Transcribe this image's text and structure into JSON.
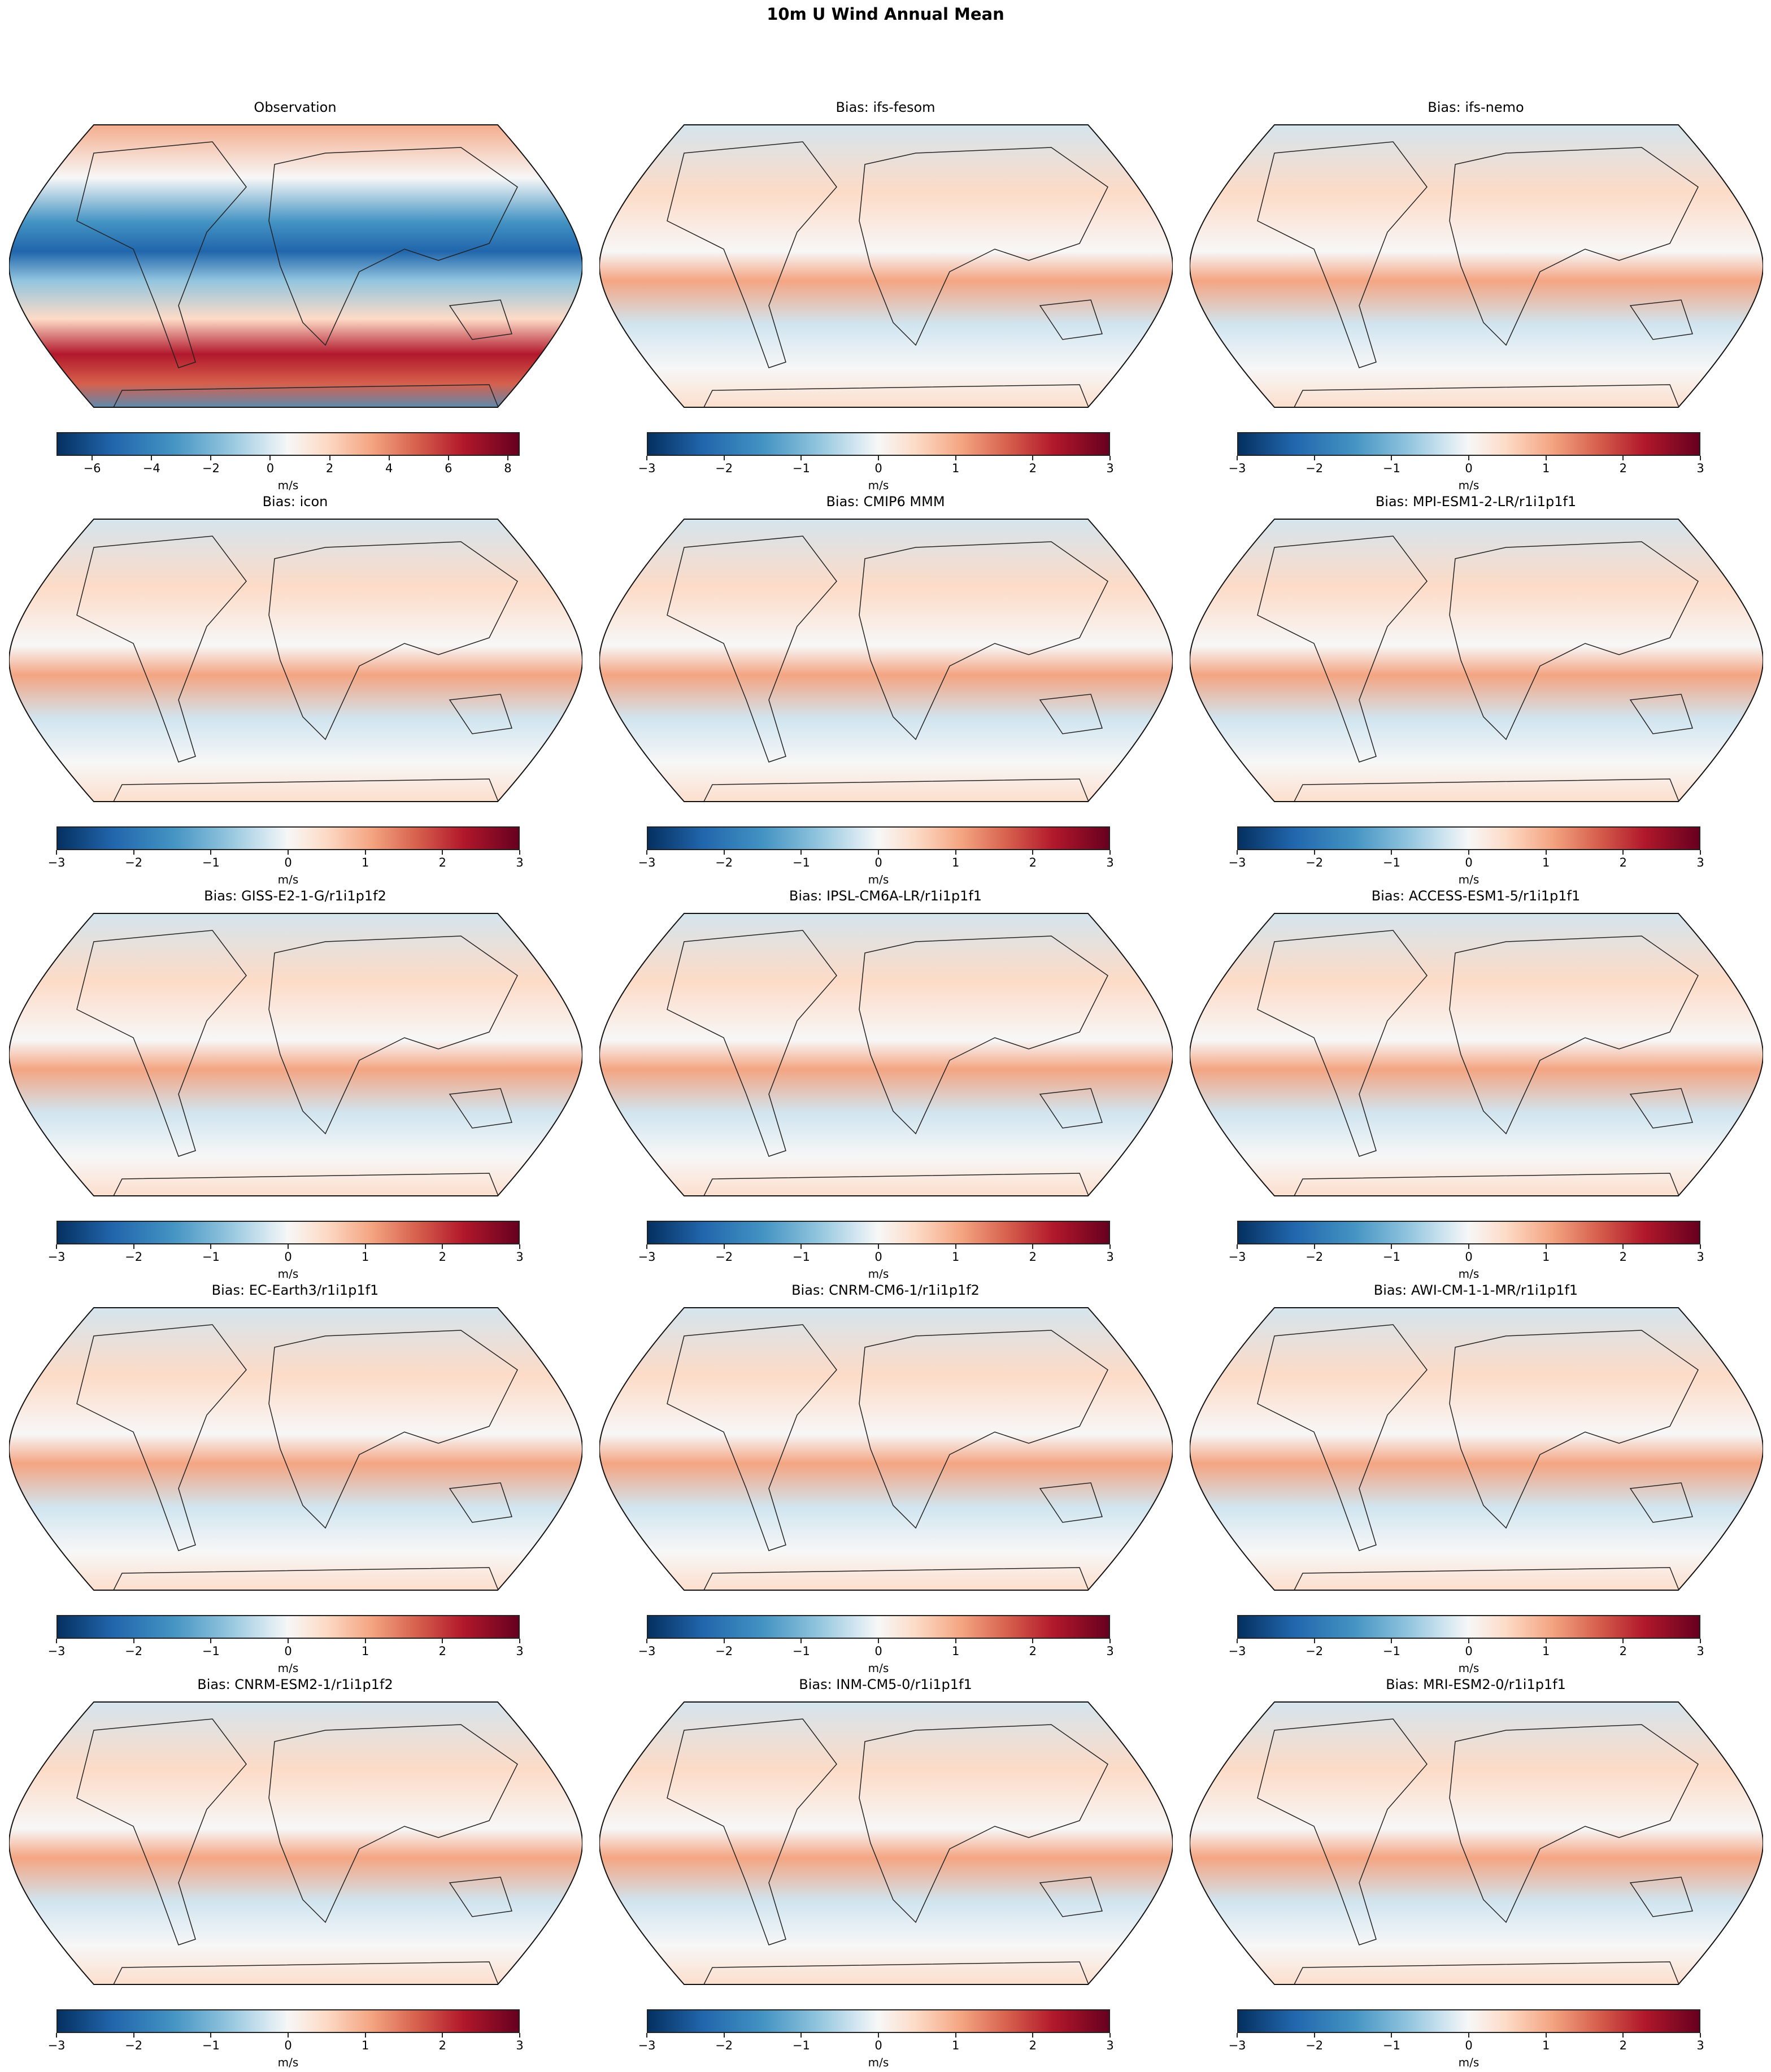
{
  "figure": {
    "title": "10m U Wind Annual Mean",
    "colormap": "RdBu_r",
    "colormap_stops": [
      "#053061",
      "#2166ac",
      "#4393c3",
      "#92c5de",
      "#d1e5f0",
      "#f7f7f7",
      "#fddbc7",
      "#f4a582",
      "#d6604d",
      "#b2182b",
      "#67001f"
    ],
    "projection": "Robinson",
    "grid": {
      "rows": 5,
      "cols": 3
    }
  },
  "panels": [
    {
      "title": "Observation",
      "cbar_label": "m/s",
      "ticks": [
        "−6",
        "−4",
        "−2",
        "0",
        "2",
        "4",
        "6",
        "8"
      ],
      "vmin": -7.2,
      "vmax": 8.4
    },
    {
      "title": "Bias: ifs-fesom",
      "cbar_label": "m/s",
      "ticks": [
        "−3",
        "−2",
        "−1",
        "0",
        "1",
        "2",
        "3"
      ],
      "vmin": -3,
      "vmax": 3
    },
    {
      "title": "Bias: ifs-nemo",
      "cbar_label": "m/s",
      "ticks": [
        "−3",
        "−2",
        "−1",
        "0",
        "1",
        "2",
        "3"
      ],
      "vmin": -3,
      "vmax": 3
    },
    {
      "title": "Bias: icon",
      "cbar_label": "m/s",
      "ticks": [
        "−3",
        "−2",
        "−1",
        "0",
        "1",
        "2",
        "3"
      ],
      "vmin": -3,
      "vmax": 3
    },
    {
      "title": "Bias: CMIP6 MMM",
      "cbar_label": "m/s",
      "ticks": [
        "−3",
        "−2",
        "−1",
        "0",
        "1",
        "2",
        "3"
      ],
      "vmin": -3,
      "vmax": 3
    },
    {
      "title": "Bias: MPI-ESM1-2-LR/r1i1p1f1",
      "cbar_label": "m/s",
      "ticks": [
        "−3",
        "−2",
        "−1",
        "0",
        "1",
        "2",
        "3"
      ],
      "vmin": -3,
      "vmax": 3
    },
    {
      "title": "Bias: GISS-E2-1-G/r1i1p1f2",
      "cbar_label": "m/s",
      "ticks": [
        "−3",
        "−2",
        "−1",
        "0",
        "1",
        "2",
        "3"
      ],
      "vmin": -3,
      "vmax": 3
    },
    {
      "title": "Bias: IPSL-CM6A-LR/r1i1p1f1",
      "cbar_label": "m/s",
      "ticks": [
        "−3",
        "−2",
        "−1",
        "0",
        "1",
        "2",
        "3"
      ],
      "vmin": -3,
      "vmax": 3
    },
    {
      "title": "Bias: ACCESS-ESM1-5/r1i1p1f1",
      "cbar_label": "m/s",
      "ticks": [
        "−3",
        "−2",
        "−1",
        "0",
        "1",
        "2",
        "3"
      ],
      "vmin": -3,
      "vmax": 3
    },
    {
      "title": "Bias: EC-Earth3/r1i1p1f1",
      "cbar_label": "m/s",
      "ticks": [
        "−3",
        "−2",
        "−1",
        "0",
        "1",
        "2",
        "3"
      ],
      "vmin": -3,
      "vmax": 3
    },
    {
      "title": "Bias: CNRM-CM6-1/r1i1p1f2",
      "cbar_label": "m/s",
      "ticks": [
        "−3",
        "−2",
        "−1",
        "0",
        "1",
        "2",
        "3"
      ],
      "vmin": -3,
      "vmax": 3
    },
    {
      "title": "Bias: AWI-CM-1-1-MR/r1i1p1f1",
      "cbar_label": "m/s",
      "ticks": [
        "−3",
        "−2",
        "−1",
        "0",
        "1",
        "2",
        "3"
      ],
      "vmin": -3,
      "vmax": 3
    },
    {
      "title": "Bias: CNRM-ESM2-1/r1i1p1f2",
      "cbar_label": "m/s",
      "ticks": [
        "−3",
        "−2",
        "−1",
        "0",
        "1",
        "2",
        "3"
      ],
      "vmin": -3,
      "vmax": 3
    },
    {
      "title": "Bias: INM-CM5-0/r1i1p1f1",
      "cbar_label": "m/s",
      "ticks": [
        "−3",
        "−2",
        "−1",
        "0",
        "1",
        "2",
        "3"
      ],
      "vmin": -3,
      "vmax": 3
    },
    {
      "title": "Bias: MRI-ESM2-0/r1i1p1f1",
      "cbar_label": "m/s",
      "ticks": [
        "−3",
        "−2",
        "−1",
        "0",
        "1",
        "2",
        "3"
      ],
      "vmin": -3,
      "vmax": 3
    }
  ],
  "chart_data": {
    "type": "heatmap",
    "title": "10m U Wind Annual Mean",
    "projection": "Robinson",
    "units": "m/s",
    "panels": [
      {
        "title": "Observation",
        "colorbar_range": [
          -7.2,
          8.4
        ],
        "colorbar_ticks": [
          -6,
          -4,
          -2,
          0,
          2,
          4,
          6,
          8
        ],
        "colorbar_label": "m/s"
      },
      {
        "title": "Bias: ifs-fesom",
        "colorbar_range": [
          -3,
          3
        ],
        "colorbar_ticks": [
          -3,
          -2,
          -1,
          0,
          1,
          2,
          3
        ],
        "colorbar_label": "m/s"
      },
      {
        "title": "Bias: ifs-nemo",
        "colorbar_range": [
          -3,
          3
        ],
        "colorbar_ticks": [
          -3,
          -2,
          -1,
          0,
          1,
          2,
          3
        ],
        "colorbar_label": "m/s"
      },
      {
        "title": "Bias: icon",
        "colorbar_range": [
          -3,
          3
        ],
        "colorbar_ticks": [
          -3,
          -2,
          -1,
          0,
          1,
          2,
          3
        ],
        "colorbar_label": "m/s"
      },
      {
        "title": "Bias: CMIP6 MMM",
        "colorbar_range": [
          -3,
          3
        ],
        "colorbar_ticks": [
          -3,
          -2,
          -1,
          0,
          1,
          2,
          3
        ],
        "colorbar_label": "m/s"
      },
      {
        "title": "Bias: MPI-ESM1-2-LR/r1i1p1f1",
        "colorbar_range": [
          -3,
          3
        ],
        "colorbar_ticks": [
          -3,
          -2,
          -1,
          0,
          1,
          2,
          3
        ],
        "colorbar_label": "m/s"
      },
      {
        "title": "Bias: GISS-E2-1-G/r1i1p1f2",
        "colorbar_range": [
          -3,
          3
        ],
        "colorbar_ticks": [
          -3,
          -2,
          -1,
          0,
          1,
          2,
          3
        ],
        "colorbar_label": "m/s"
      },
      {
        "title": "Bias: IPSL-CM6A-LR/r1i1p1f1",
        "colorbar_range": [
          -3,
          3
        ],
        "colorbar_ticks": [
          -3,
          -2,
          -1,
          0,
          1,
          2,
          3
        ],
        "colorbar_label": "m/s"
      },
      {
        "title": "Bias: ACCESS-ESM1-5/r1i1p1f1",
        "colorbar_range": [
          -3,
          3
        ],
        "colorbar_ticks": [
          -3,
          -2,
          -1,
          0,
          1,
          2,
          3
        ],
        "colorbar_label": "m/s"
      },
      {
        "title": "Bias: EC-Earth3/r1i1p1f1",
        "colorbar_range": [
          -3,
          3
        ],
        "colorbar_ticks": [
          -3,
          -2,
          -1,
          0,
          1,
          2,
          3
        ],
        "colorbar_label": "m/s"
      },
      {
        "title": "Bias: CNRM-CM6-1/r1i1p1f2",
        "colorbar_range": [
          -3,
          3
        ],
        "colorbar_ticks": [
          -3,
          -2,
          -1,
          0,
          1,
          2,
          3
        ],
        "colorbar_label": "m/s"
      },
      {
        "title": "Bias: AWI-CM-1-1-MR/r1i1p1f1",
        "colorbar_range": [
          -3,
          3
        ],
        "colorbar_ticks": [
          -3,
          -2,
          -1,
          0,
          1,
          2,
          3
        ],
        "colorbar_label": "m/s"
      },
      {
        "title": "Bias: CNRM-ESM2-1/r1i1p1f2",
        "colorbar_range": [
          -3,
          3
        ],
        "colorbar_ticks": [
          -3,
          -2,
          -1,
          0,
          1,
          2,
          3
        ],
        "colorbar_label": "m/s"
      },
      {
        "title": "Bias: INM-CM5-0/r1i1p1f1",
        "colorbar_range": [
          -3,
          3
        ],
        "colorbar_ticks": [
          -3,
          -2,
          -1,
          0,
          1,
          2,
          3
        ],
        "colorbar_label": "m/s"
      },
      {
        "title": "Bias: MRI-ESM2-0/r1i1p1f1",
        "colorbar_range": [
          -3,
          3
        ],
        "colorbar_ticks": [
          -3,
          -2,
          -1,
          0,
          1,
          2,
          3
        ],
        "colorbar_label": "m/s"
      }
    ],
    "observation_features": {
      "tropical_easterlies": "blue bands (~-6 m/s) in tropical Pacific and Atlantic",
      "southern_westerlies": "strong red band (~+8 m/s) over Southern Ocean",
      "antarctic_coast": "blue easterlies near Antarctica"
    }
  }
}
